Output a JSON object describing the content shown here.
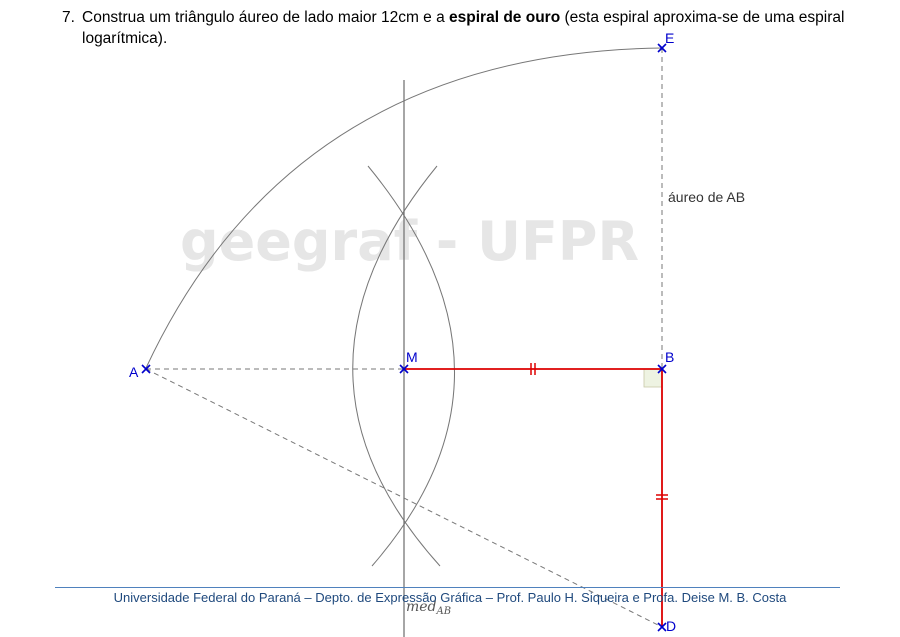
{
  "exercise": {
    "number": "7.",
    "text_before": "Construa um triângulo áureo de lado maior 12cm e a ",
    "bold": "espiral de ouro",
    "text_after": " (esta espiral aproxima-se de uma espiral logarítmica)."
  },
  "watermark": "geegraf - UFPR",
  "diagram": {
    "points": {
      "A": "A",
      "B": "B",
      "D": "D",
      "E": "E",
      "M": "M"
    },
    "label_golden": "áureo de AB",
    "label_bisector_main": "med",
    "label_bisector_sub": "AB"
  },
  "footer": "Universidade Federal do Paraná – Depto. de Expressão Gráfica – Prof. Paulo H. Siqueira e Profa. Deise M. B. Costa",
  "colors": {
    "construction": "#777777",
    "red": "#dd0000",
    "points": "#0000cc",
    "footer": "#1f497d"
  }
}
